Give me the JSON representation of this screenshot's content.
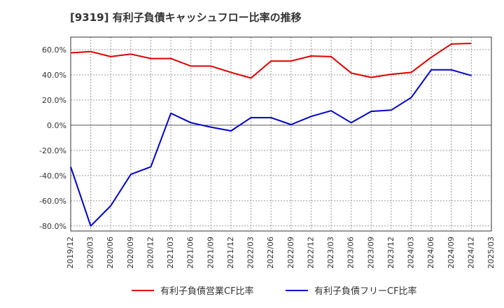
{
  "chart_data": {
    "type": "line",
    "title": "[9319]  有利子負債キャッシュフロー比率の推移",
    "xlabel": "",
    "ylabel": "",
    "ylim": [
      -84,
      70
    ],
    "y_ticks": [
      60,
      40,
      20,
      0,
      -20,
      -40,
      -60,
      -80
    ],
    "y_tick_labels": [
      "60.0%",
      "40.0%",
      "20.0%",
      "0.0%",
      "-20.0%",
      "-40.0%",
      "-60.0%",
      "-80.0%"
    ],
    "categories": [
      "2019/12",
      "2020/03",
      "2020/06",
      "2020/09",
      "2020/12",
      "2021/03",
      "2021/06",
      "2021/09",
      "2021/12",
      "2022/03",
      "2022/06",
      "2022/09",
      "2022/12",
      "2023/03",
      "2023/06",
      "2023/09",
      "2023/12",
      "2024/03",
      "2024/06",
      "2024/09",
      "2024/12",
      "2025/03"
    ],
    "grid": true,
    "legend_position": "bottom",
    "series": [
      {
        "name": "有利子負債営業CF比率",
        "color": "#e00000",
        "values": [
          57.5,
          58.5,
          54.5,
          56.5,
          53.0,
          53.0,
          47.0,
          47.0,
          42.0,
          37.5,
          51.0,
          51.0,
          55.0,
          54.5,
          41.5,
          38.0,
          40.5,
          42.0,
          54.0,
          64.5,
          65.0,
          null
        ]
      },
      {
        "name": "有利子負債フリーCF比率",
        "color": "#0000cc",
        "values": [
          -33.0,
          -80.0,
          -64.0,
          -39.0,
          -33.0,
          9.5,
          2.0,
          -1.5,
          -4.5,
          6.0,
          6.0,
          0.5,
          7.0,
          11.5,
          2.0,
          11.0,
          12.0,
          22.0,
          44.0,
          44.0,
          39.5,
          null
        ]
      }
    ]
  }
}
